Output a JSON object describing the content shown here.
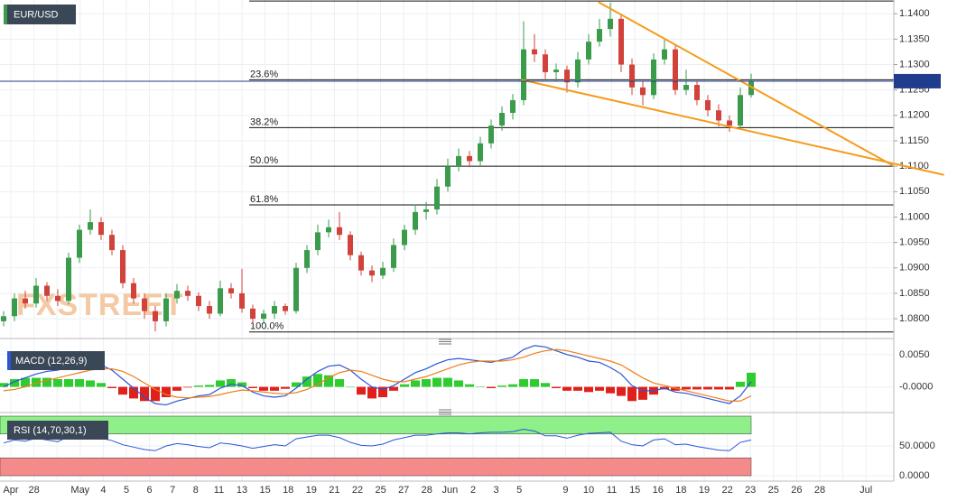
{
  "chart_data": {
    "type": "candlestick",
    "title": "EUR/USD",
    "watermark": "FXSTREET",
    "x_labels": [
      "Apr",
      "28",
      null,
      "May",
      "4",
      "5",
      "6",
      "7",
      "8",
      "11",
      "13",
      "15",
      "18",
      "19",
      "21",
      "22",
      "25",
      "27",
      "28",
      "Jun",
      "2",
      "3",
      "5",
      null,
      "9",
      "10",
      "11",
      "15",
      "16",
      "18",
      "19",
      "22",
      "23",
      "25",
      "26",
      "28",
      null,
      "Jul"
    ],
    "candles": [
      [
        1.0795,
        1.0815,
        1.0785,
        1.0805
      ],
      [
        1.0805,
        1.085,
        1.0795,
        1.084
      ],
      [
        1.084,
        1.0855,
        1.082,
        1.083
      ],
      [
        1.083,
        1.088,
        1.0822,
        1.0865
      ],
      [
        1.0865,
        1.0872,
        1.0835,
        1.0845
      ],
      [
        1.0845,
        1.0858,
        1.0825,
        1.0835
      ],
      [
        1.0835,
        1.093,
        1.0828,
        1.092
      ],
      [
        1.092,
        1.0985,
        1.091,
        1.0975
      ],
      [
        1.0975,
        1.1015,
        1.0965,
        1.099
      ],
      [
        1.099,
        1.1,
        1.0955,
        1.0965
      ],
      [
        1.0965,
        1.0975,
        1.0925,
        1.0935
      ],
      [
        1.0935,
        1.0945,
        1.086,
        1.087
      ],
      [
        1.087,
        1.088,
        1.083,
        1.084
      ],
      [
        1.084,
        1.085,
        1.08,
        1.0815
      ],
      [
        1.0815,
        1.0825,
        1.0775,
        1.0795
      ],
      [
        1.0795,
        1.085,
        1.0785,
        1.084
      ],
      [
        1.084,
        1.0868,
        1.083,
        1.0855
      ],
      [
        1.0855,
        1.0865,
        1.0835,
        1.0845
      ],
      [
        1.0845,
        1.0852,
        1.0815,
        1.0825
      ],
      [
        1.0825,
        1.0835,
        1.08,
        1.081
      ],
      [
        1.081,
        1.0875,
        1.0805,
        1.086
      ],
      [
        1.086,
        1.087,
        1.084,
        1.085
      ],
      [
        1.085,
        1.0898,
        1.0812,
        1.082
      ],
      [
        1.082,
        1.0828,
        1.079,
        1.08
      ],
      [
        1.08,
        1.0818,
        1.079,
        1.081
      ],
      [
        1.081,
        1.0835,
        1.08,
        1.0825
      ],
      [
        1.0825,
        1.083,
        1.0808,
        1.0815
      ],
      [
        1.0815,
        1.091,
        1.081,
        1.09
      ],
      [
        1.09,
        1.0945,
        1.089,
        1.0935
      ],
      [
        1.0935,
        1.0985,
        1.0925,
        1.097
      ],
      [
        1.097,
        1.0995,
        1.096,
        1.098
      ],
      [
        1.098,
        1.101,
        1.0955,
        1.0965
      ],
      [
        1.0965,
        1.0972,
        1.0915,
        1.0925
      ],
      [
        1.0925,
        1.0932,
        1.0885,
        1.0895
      ],
      [
        1.0895,
        1.0905,
        1.0872,
        1.0885
      ],
      [
        1.0885,
        1.0912,
        1.0878,
        1.09
      ],
      [
        1.09,
        1.0958,
        1.0892,
        1.0945
      ],
      [
        1.0945,
        1.0985,
        1.0935,
        1.0975
      ],
      [
        1.0975,
        1.1025,
        1.0965,
        1.101
      ],
      [
        1.101,
        1.103,
        1.0995,
        1.1015
      ],
      [
        1.1015,
        1.1075,
        1.1005,
        1.106
      ],
      [
        1.106,
        1.1115,
        1.105,
        1.11
      ],
      [
        1.11,
        1.1135,
        1.109,
        1.112
      ],
      [
        1.112,
        1.113,
        1.1098,
        1.111
      ],
      [
        1.111,
        1.1158,
        1.11,
        1.1145
      ],
      [
        1.1145,
        1.1192,
        1.1135,
        1.118
      ],
      [
        1.118,
        1.1218,
        1.117,
        1.1205
      ],
      [
        1.1205,
        1.1242,
        1.1192,
        1.123
      ],
      [
        1.123,
        1.1385,
        1.122,
        1.133
      ],
      [
        1.133,
        1.136,
        1.1305,
        1.132
      ],
      [
        1.132,
        1.133,
        1.1272,
        1.1285
      ],
      [
        1.1285,
        1.1302,
        1.1268,
        1.129
      ],
      [
        1.129,
        1.1298,
        1.1245,
        1.1265
      ],
      [
        1.1265,
        1.1325,
        1.1255,
        1.131
      ],
      [
        1.131,
        1.136,
        1.13,
        1.1345
      ],
      [
        1.1345,
        1.139,
        1.1335,
        1.137
      ],
      [
        1.137,
        1.1422,
        1.1355,
        1.139
      ],
      [
        1.139,
        1.14,
        1.1285,
        1.13
      ],
      [
        1.13,
        1.1312,
        1.124,
        1.1255
      ],
      [
        1.1255,
        1.1268,
        1.122,
        1.124
      ],
      [
        1.124,
        1.1322,
        1.1232,
        1.131
      ],
      [
        1.131,
        1.1352,
        1.13,
        1.133
      ],
      [
        1.133,
        1.134,
        1.124,
        1.125
      ],
      [
        1.125,
        1.129,
        1.124,
        1.126
      ],
      [
        1.126,
        1.1268,
        1.122,
        1.123
      ],
      [
        1.123,
        1.124,
        1.1198,
        1.121
      ],
      [
        1.121,
        1.1222,
        1.1178,
        1.119
      ],
      [
        1.119,
        1.12,
        1.1168,
        1.118
      ],
      [
        1.118,
        1.1255,
        1.1172,
        1.124
      ],
      [
        1.124,
        1.1282,
        1.1235,
        1.1267
      ]
    ],
    "up_color": "#3a9b4b",
    "down_color": "#d0423a",
    "ylim": [
      1.077,
      1.1427
    ],
    "yticks": [
      {
        "value": 1.14,
        "label": "1.1400"
      },
      {
        "value": 1.135,
        "label": "1.1350"
      },
      {
        "value": 1.13,
        "label": "1.1300"
      },
      {
        "value": 1.125,
        "label": "1.1250"
      },
      {
        "value": 1.12,
        "label": "1.1200"
      },
      {
        "value": 1.115,
        "label": "1.1150"
      },
      {
        "value": 1.11,
        "label": "1.1100"
      },
      {
        "value": 1.105,
        "label": "1.1050"
      },
      {
        "value": 1.1,
        "label": "1.1000"
      },
      {
        "value": 1.095,
        "label": "1.0950"
      },
      {
        "value": 1.09,
        "label": "1.0900"
      },
      {
        "value": 1.085,
        "label": "1.0850"
      },
      {
        "value": 1.08,
        "label": "1.0800"
      }
    ],
    "grid": true,
    "last_price": 1.12673,
    "last_price_color": "#1f3d8c",
    "fib_levels": [
      {
        "value": 1.1425
      },
      {
        "value": 1.127,
        "label": "23.6%"
      },
      {
        "value": 1.1176,
        "label": "38.2%"
      },
      {
        "value": 1.11,
        "label": "50.0%"
      },
      {
        "value": 1.1024,
        "label": "61.8%"
      },
      {
        "value": 1.0774,
        "label": "100.0%"
      }
    ],
    "trendline_color": "#f59c1a",
    "trendlines": [
      {
        "x": [
          54.9,
          82.2
        ],
        "y": [
          1.1423,
          1.11
        ]
      },
      {
        "x": [
          47.8,
          86.8
        ],
        "y": [
          1.127,
          1.1083
        ]
      }
    ],
    "macd": {
      "label": "MACD (12,26,9)",
      "macd_color": "#2b55d6",
      "signal_color": "#f07d1a",
      "macd": [
        0,
        0.0008,
        0.0014,
        0.002,
        0.0024,
        0.0026,
        0.003,
        0.0034,
        0.0036,
        0.0034,
        0.0026,
        0.0012,
        -0.0002,
        -0.0016,
        -0.0026,
        -0.0028,
        -0.0022,
        -0.0018,
        -0.0014,
        -0.0012,
        -0.0002,
        0.0004,
        0.0002,
        -0.0008,
        -0.0014,
        -0.0016,
        -0.0014,
        -0.0002,
        0.0012,
        0.0024,
        0.0032,
        0.0034,
        0.0026,
        0.0012,
        0,
        -0.0004,
        0.0002,
        0.0012,
        0.0022,
        0.0028,
        0.0036,
        0.0042,
        0.0044,
        0.0042,
        0.004,
        0.0038,
        0.0042,
        0.0046,
        0.0058,
        0.0064,
        0.0062,
        0.0056,
        0.005,
        0.0046,
        0.004,
        0.0038,
        0.003,
        0.002,
        0.0002,
        -0.0006,
        -0.0006,
        -0.0002,
        -0.0008,
        -0.001,
        -0.0014,
        -0.0018,
        -0.0022,
        -0.0026,
        -0.0014,
        0.0008
      ],
      "signal": [
        -0.0006,
        -0.0004,
        0,
        0.0006,
        0.001,
        0.0014,
        0.0018,
        0.0022,
        0.0026,
        0.0028,
        0.0028,
        0.0024,
        0.0016,
        0.0006,
        -0.0004,
        -0.0012,
        -0.0016,
        -0.0017,
        -0.0016,
        -0.0015,
        -0.0012,
        -0.0008,
        -0.0005,
        -0.0006,
        -0.0008,
        -0.001,
        -0.0011,
        -0.0009,
        -0.0004,
        0.0004,
        0.0014,
        0.0022,
        0.0026,
        0.0024,
        0.0018,
        0.0012,
        0.0008,
        0.0008,
        0.0012,
        0.0016,
        0.0022,
        0.0028,
        0.0034,
        0.0038,
        0.004,
        0.004,
        0.004,
        0.0042,
        0.0046,
        0.0052,
        0.0056,
        0.0058,
        0.0056,
        0.0052,
        0.0048,
        0.0044,
        0.004,
        0.0034,
        0.0024,
        0.0014,
        0.0006,
        0.0002,
        -0.0002,
        -0.0006,
        -0.001,
        -0.0014,
        -0.0018,
        -0.0022,
        -0.0022,
        -0.0014
      ],
      "histogram": [
        0.0006,
        0.0012,
        0.0014,
        0.0014,
        0.0014,
        0.0012,
        0.0012,
        0.0012,
        0.001,
        0.0006,
        -0.0002,
        -0.0012,
        -0.0018,
        -0.0022,
        -0.0022,
        -0.0016,
        -0.0006,
        -0.0001,
        0.0002,
        0.0003,
        0.001,
        0.0012,
        0.0007,
        -0.0002,
        -0.0006,
        -0.0006,
        -0.0003,
        0.0007,
        0.0016,
        0.002,
        0.0018,
        0.0012,
        0,
        -0.0012,
        -0.0018,
        -0.0016,
        -0.0006,
        0.0004,
        0.001,
        0.0012,
        0.0014,
        0.0014,
        0.001,
        0.0004,
        0,
        -0.0002,
        0.0002,
        0.0004,
        0.0012,
        0.0012,
        0.0006,
        -0.0002,
        -0.0006,
        -0.0006,
        -0.0008,
        -0.0006,
        -0.001,
        -0.0014,
        -0.0022,
        -0.002,
        -0.0012,
        -0.0004,
        -0.0006,
        -0.0004,
        -0.0004,
        -0.0004,
        -0.0004,
        -0.0004,
        0.0008,
        0.0022
      ],
      "ylim": [
        -0.0037,
        0.0068
      ],
      "yticks": [
        {
          "value": 0.005,
          "label": "0.0050"
        },
        {
          "value": 0,
          "label": "-0.0000"
        }
      ]
    },
    "rsi": {
      "label": "RSI (14,70,30,1)",
      "color": "#2b55d6",
      "values": [
        55,
        60,
        58,
        63,
        60,
        57,
        66,
        68,
        69,
        63,
        59,
        52,
        48,
        44,
        42,
        50,
        54,
        52,
        49,
        47,
        55,
        53,
        50,
        46,
        49,
        52,
        50,
        62,
        65,
        68,
        68,
        64,
        56,
        51,
        50,
        53,
        60,
        64,
        68,
        68,
        70,
        72,
        72,
        70,
        72,
        73,
        73,
        74,
        78,
        75,
        67,
        67,
        63,
        68,
        71,
        72,
        73,
        58,
        52,
        50,
        60,
        62,
        52,
        53,
        49,
        46,
        43,
        42,
        56,
        60
      ],
      "overbought": 70,
      "oversold": 30,
      "overbought_color": "#8ff08a",
      "oversold_color": "#f58a8a",
      "ylim": [
        0,
        100
      ],
      "yticks": [
        {
          "value": 50,
          "label": "50.0000"
        },
        {
          "value": 0,
          "label": "0.0000"
        }
      ]
    }
  }
}
